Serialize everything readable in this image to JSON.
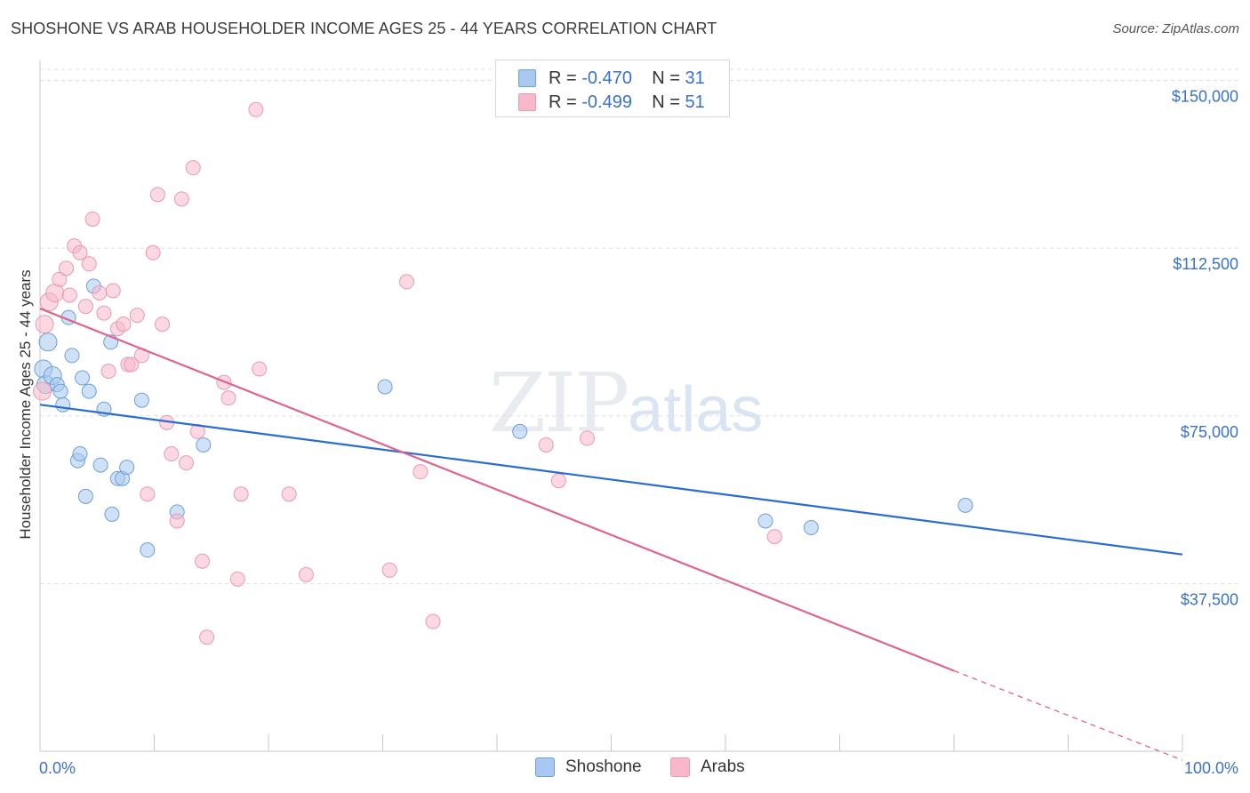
{
  "header": {
    "title": "SHOSHONE VS ARAB HOUSEHOLDER INCOME AGES 25 - 44 YEARS CORRELATION CHART",
    "source": "Source: ZipAtlas.com"
  },
  "watermark": {
    "zip": "ZIP",
    "atlas": "atlas"
  },
  "legend": {
    "rows": [
      {
        "r_label": "R =",
        "r_value": "-0.470",
        "n_label": "N =",
        "n_value": "31",
        "color": "#a8c8f0"
      },
      {
        "r_label": "R =",
        "r_value": "-0.499",
        "n_label": "N =",
        "n_value": "51",
        "color": "#f7b8ca"
      }
    ]
  },
  "bottom_legend": {
    "items": [
      {
        "label": "Shoshone",
        "color": "#a8c8f0"
      },
      {
        "label": "Arabs",
        "color": "#f7b8ca"
      }
    ]
  },
  "chart_data": {
    "type": "scatter",
    "title": "SHOSHONE VS ARAB HOUSEHOLDER INCOME AGES 25 - 44 YEARS CORRELATION CHART",
    "xlabel": "",
    "ylabel": "Householder Income Ages 25 - 44 years",
    "xlim": [
      0,
      100
    ],
    "ylim": [
      0,
      152500
    ],
    "x_tick_labels": [
      "0.0%",
      "100.0%"
    ],
    "y_ticks": [
      37500,
      75000,
      112500,
      150000
    ],
    "y_tick_labels": [
      "$37,500",
      "$75,000",
      "$112,500",
      "$150,000"
    ],
    "grid": true,
    "series": [
      {
        "name": "Shoshone",
        "color": "#a8c8f0",
        "stroke": "#6e9fd8",
        "line_color": "#2a6dd0",
        "trend": {
          "x": [
            0,
            100
          ],
          "y": [
            77500,
            44000
          ]
        },
        "points": [
          [
            0.3,
            85500
          ],
          [
            0.5,
            82000
          ],
          [
            0.7,
            91500
          ],
          [
            1.1,
            84000
          ],
          [
            1.5,
            82000
          ],
          [
            1.8,
            80500
          ],
          [
            2.0,
            77500
          ],
          [
            2.5,
            97000
          ],
          [
            2.8,
            88500
          ],
          [
            3.3,
            65000
          ],
          [
            3.5,
            66500
          ],
          [
            3.7,
            83500
          ],
          [
            4.0,
            57000
          ],
          [
            4.3,
            80500
          ],
          [
            4.7,
            104000
          ],
          [
            5.3,
            64000
          ],
          [
            5.6,
            76500
          ],
          [
            6.2,
            91500
          ],
          [
            6.3,
            53000
          ],
          [
            6.8,
            61000
          ],
          [
            7.2,
            61000
          ],
          [
            7.6,
            63500
          ],
          [
            8.9,
            78500
          ],
          [
            9.4,
            45000
          ],
          [
            12.0,
            53500
          ],
          [
            14.3,
            68500
          ],
          [
            30.2,
            81500
          ],
          [
            42.0,
            71500
          ],
          [
            63.5,
            51500
          ],
          [
            67.5,
            50000
          ],
          [
            81.0,
            55000
          ]
        ]
      },
      {
        "name": "Arabs",
        "color": "#f7b8ca",
        "stroke": "#e89ab2",
        "line_color": "#e0648e",
        "trend": {
          "x": [
            0,
            80
          ],
          "y": [
            99000,
            18000
          ]
        },
        "trend_dash": {
          "x": [
            80,
            100
          ],
          "y": [
            18000,
            -2000
          ]
        },
        "points": [
          [
            0.2,
            80500
          ],
          [
            0.4,
            95500
          ],
          [
            0.8,
            100500
          ],
          [
            1.3,
            102500
          ],
          [
            1.7,
            105500
          ],
          [
            2.3,
            108000
          ],
          [
            2.6,
            102000
          ],
          [
            3.0,
            113000
          ],
          [
            3.5,
            111500
          ],
          [
            4.0,
            99500
          ],
          [
            4.3,
            109000
          ],
          [
            4.6,
            119000
          ],
          [
            5.2,
            102500
          ],
          [
            5.6,
            98000
          ],
          [
            6.0,
            85000
          ],
          [
            6.4,
            103000
          ],
          [
            6.8,
            94500
          ],
          [
            7.3,
            95500
          ],
          [
            7.7,
            86500
          ],
          [
            8.0,
            86500
          ],
          [
            8.5,
            97500
          ],
          [
            8.9,
            88500
          ],
          [
            9.4,
            57500
          ],
          [
            9.9,
            111500
          ],
          [
            10.3,
            124500
          ],
          [
            10.7,
            95500
          ],
          [
            11.1,
            73500
          ],
          [
            11.5,
            66500
          ],
          [
            12.0,
            51500
          ],
          [
            12.4,
            123500
          ],
          [
            12.8,
            64500
          ],
          [
            13.4,
            130500
          ],
          [
            13.8,
            71500
          ],
          [
            14.2,
            42500
          ],
          [
            14.6,
            25500
          ],
          [
            16.1,
            82500
          ],
          [
            16.5,
            79000
          ],
          [
            17.3,
            38500
          ],
          [
            17.6,
            57500
          ],
          [
            18.9,
            143500
          ],
          [
            19.2,
            85500
          ],
          [
            21.8,
            57500
          ],
          [
            23.3,
            39500
          ],
          [
            30.6,
            40500
          ],
          [
            32.1,
            105000
          ],
          [
            33.3,
            62500
          ],
          [
            34.4,
            29000
          ],
          [
            44.3,
            68500
          ],
          [
            45.4,
            60500
          ],
          [
            47.9,
            70000
          ],
          [
            64.3,
            48000
          ]
        ]
      }
    ]
  }
}
